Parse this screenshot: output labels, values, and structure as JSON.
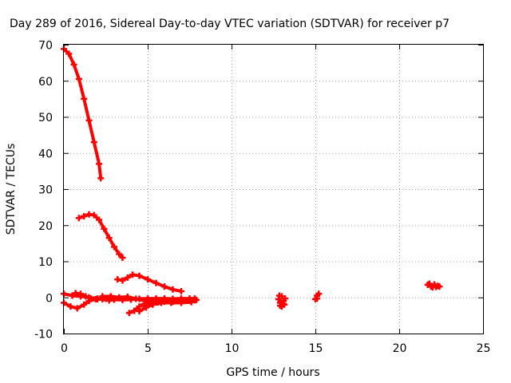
{
  "chart_data": {
    "type": "scatter",
    "title": "Day 289 of 2016, Sidereal Day-to-day VTEC variation (SDTVAR) for receiver p7",
    "xlabel": "GPS time / hours",
    "ylabel": "SDTVAR / TECUs",
    "xlim": [
      0,
      25
    ],
    "ylim": [
      -10,
      70
    ],
    "xticks": [
      "0",
      "5",
      "10",
      "15",
      "20",
      "25"
    ],
    "yticks": [
      "-10",
      "0",
      "10",
      "20",
      "30",
      "40",
      "50",
      "60",
      "70"
    ],
    "grid": true,
    "legend": "none",
    "color": "#ff0000",
    "series": [
      {
        "x": [
          0.0,
          0.3,
          0.6,
          0.9,
          1.2,
          1.5,
          1.8,
          2.1,
          2.2
        ],
        "y": [
          68.8,
          67.5,
          64.5,
          60.5,
          55.0,
          49.0,
          43.0,
          37.0,
          33.0
        ]
      },
      {
        "x": [
          0.9,
          1.2,
          1.5,
          1.8,
          2.1,
          2.4,
          2.7,
          3.0,
          3.3,
          3.5
        ],
        "y": [
          22.0,
          22.5,
          23.0,
          22.8,
          21.5,
          19.0,
          16.5,
          14.0,
          12.0,
          11.0
        ]
      },
      {
        "x": [
          3.2,
          3.5,
          3.8,
          4.1,
          4.5,
          5.0,
          5.5,
          6.0,
          6.5,
          7.0
        ],
        "y": [
          5.0,
          4.7,
          5.5,
          6.3,
          6.0,
          5.0,
          4.0,
          3.0,
          2.2,
          1.7
        ]
      },
      {
        "x": [
          0.0,
          0.5,
          1.0,
          1.5,
          2.0,
          2.5,
          3.0
        ],
        "y": [
          1.0,
          0.5,
          0.3,
          0.0,
          -0.3,
          -0.4,
          -0.6
        ]
      },
      {
        "x": [
          0.0,
          0.4,
          0.8,
          1.2,
          1.5,
          1.9,
          2.3,
          2.7,
          3.0,
          3.5,
          4.0,
          4.5,
          5.0,
          5.5,
          6.0,
          6.5,
          7.0,
          7.5,
          7.8
        ],
        "y": [
          -1.5,
          -2.5,
          -3.0,
          -2.0,
          -1.0,
          -0.5,
          -0.5,
          -0.8,
          -0.6,
          -0.7,
          -0.6,
          -0.4,
          -0.3,
          -0.3,
          -0.3,
          -0.4,
          -0.3,
          -0.3,
          -0.3
        ]
      },
      {
        "x": [
          0.7,
          1.0,
          1.3,
          1.6,
          2.0
        ],
        "y": [
          1.2,
          1.0,
          0.3,
          -0.3,
          -0.5
        ]
      },
      {
        "x": [
          2.3,
          2.8,
          3.3,
          3.8,
          4.3,
          4.8,
          5.3,
          5.8,
          6.3,
          6.8,
          7.3,
          7.8
        ],
        "y": [
          0.3,
          0.3,
          0.0,
          0.2,
          -0.4,
          -0.9,
          -0.9,
          -0.9,
          -1.0,
          -1.0,
          -0.9,
          -0.8
        ]
      },
      {
        "x": [
          3.9,
          4.2,
          4.5,
          4.8,
          5.2,
          5.6,
          6.0,
          6.5,
          7.0,
          7.5
        ],
        "y": [
          -4.3,
          -3.7,
          -2.5,
          -1.8,
          -1.5,
          -1.4,
          -1.2,
          -1.2,
          -0.8,
          -0.9
        ]
      },
      {
        "x": [
          4.5,
          4.9,
          5.3,
          5.8,
          6.4,
          7.0,
          7.6,
          7.9
        ],
        "y": [
          -3.8,
          -2.8,
          -2.0,
          -1.5,
          -1.5,
          -1.5,
          -1.3,
          -0.7
        ]
      },
      {
        "x": [
          12.8,
          12.9,
          13.0,
          13.1,
          13.2,
          12.85,
          13.15,
          13.0,
          12.9,
          13.1
        ],
        "y": [
          -0.5,
          -1.5,
          -2.5,
          -1.0,
          -0.3,
          0.5,
          -2.0,
          0.3,
          -2.3,
          -1.8
        ]
      },
      {
        "x": [
          15.0,
          15.1,
          15.2,
          15.1
        ],
        "y": [
          -0.5,
          0.5,
          1.0,
          -0.3
        ]
      },
      {
        "x": [
          21.7,
          21.8,
          21.9,
          22.0,
          22.1,
          22.2,
          22.3,
          22.4
        ],
        "y": [
          3.5,
          3.8,
          3.0,
          2.8,
          3.6,
          2.9,
          3.2,
          3.0
        ]
      }
    ]
  }
}
